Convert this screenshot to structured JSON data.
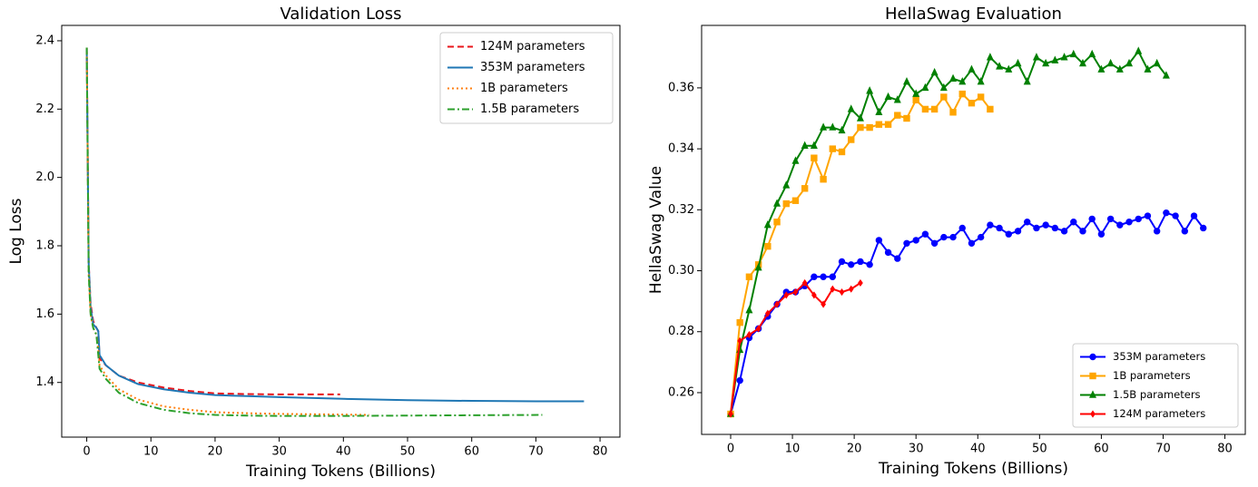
{
  "chart_data": [
    {
      "type": "line",
      "title": "Validation Loss",
      "xlabel": "Training Tokens (Billions)",
      "ylabel": "Log Loss",
      "xlim": [
        -3.9,
        83.1
      ],
      "xticks": [
        0,
        10,
        20,
        30,
        40,
        50,
        60,
        70,
        80
      ],
      "ylim": [
        1.24,
        2.445
      ],
      "yticks": [
        {
          "value": 1.4,
          "label": "1.4"
        },
        1.6,
        1.8,
        {
          "value": 2,
          "label": "2.0"
        },
        2.2,
        2.4
      ],
      "legend": "upper right",
      "series": [
        {
          "name": "124M parameters",
          "color": "#e8161b",
          "linestyle": "dashed",
          "x": [
            0,
            0.3,
            0.6,
            1,
            1.5,
            1.8,
            2,
            3,
            5,
            8,
            12,
            16,
            20,
            25,
            30,
            35,
            39.5
          ],
          "values": [
            2.38,
            1.75,
            1.63,
            1.58,
            1.56,
            1.55,
            1.47,
            1.45,
            1.42,
            1.4,
            1.385,
            1.375,
            1.368,
            1.366,
            1.365,
            1.365,
            1.365
          ]
        },
        {
          "name": "353M parameters",
          "color": "#1f77b4",
          "linestyle": "solid",
          "x": [
            0,
            0.3,
            0.6,
            1,
            1.5,
            1.8,
            2,
            3,
            5,
            8,
            12,
            16,
            20,
            25,
            30,
            40,
            50,
            60,
            70,
            77.5
          ],
          "values": [
            2.38,
            1.75,
            1.62,
            1.57,
            1.56,
            1.55,
            1.48,
            1.45,
            1.42,
            1.395,
            1.38,
            1.37,
            1.363,
            1.36,
            1.357,
            1.352,
            1.348,
            1.346,
            1.345,
            1.345
          ]
        },
        {
          "name": "1B parameters",
          "color": "#ff7f0e",
          "linestyle": "dotted",
          "x": [
            0,
            0.3,
            0.6,
            1,
            1.5,
            1.8,
            2,
            3,
            5,
            8,
            12,
            16,
            20,
            25,
            30,
            35,
            40,
            44
          ],
          "values": [
            2.38,
            1.72,
            1.6,
            1.56,
            1.54,
            1.5,
            1.45,
            1.42,
            1.38,
            1.35,
            1.33,
            1.32,
            1.313,
            1.31,
            1.308,
            1.307,
            1.306,
            1.305
          ]
        },
        {
          "name": "1.5B parameters",
          "color": "#2ca02c",
          "linestyle": "dashdot",
          "x": [
            0,
            0.3,
            0.6,
            1,
            1.5,
            2,
            3,
            5,
            8,
            12,
            16,
            20,
            25,
            30,
            40,
            50,
            60,
            71
          ],
          "values": [
            2.38,
            1.72,
            1.6,
            1.56,
            1.54,
            1.44,
            1.41,
            1.37,
            1.34,
            1.32,
            1.31,
            1.305,
            1.303,
            1.302,
            1.302,
            1.303,
            1.304,
            1.305
          ]
        }
      ]
    },
    {
      "type": "line",
      "title": "HellaSwag Evaluation",
      "xlabel": "Training Tokens (Billions)",
      "ylabel": "HellaSwag Value",
      "xlim": [
        -4.7,
        83.3
      ],
      "xticks": [
        0,
        10,
        20,
        30,
        40,
        50,
        60,
        70,
        80
      ],
      "ylim": [
        0.2463,
        0.3805
      ],
      "yticks": [
        0.26,
        0.28,
        {
          "value": 0.3,
          "label": "0.30"
        },
        0.32,
        0.34,
        0.36
      ],
      "legend": "lower right",
      "series": [
        {
          "name": "353M parameters",
          "color": "#0000ff",
          "linestyle": "solid",
          "marker": "circle",
          "x": [
            0,
            1.5,
            3,
            4.5,
            6,
            7.5,
            9,
            10.5,
            12,
            13.5,
            15,
            16.5,
            18,
            19.5,
            21,
            22.5,
            24,
            25.5,
            27,
            28.5,
            30,
            31.5,
            33,
            34.5,
            36,
            37.5,
            39,
            40.5,
            42,
            43.5,
            45,
            46.5,
            48,
            49.5,
            51,
            52.5,
            54,
            55.5,
            57,
            58.5,
            60,
            61.5,
            63,
            64.5,
            66,
            67.5,
            69,
            70.5,
            72,
            73.5,
            75,
            76.5
          ],
          "values": [
            0.253,
            0.264,
            0.278,
            0.281,
            0.285,
            0.289,
            0.293,
            0.293,
            0.295,
            0.298,
            0.298,
            0.298,
            0.303,
            0.302,
            0.303,
            0.302,
            0.31,
            0.306,
            0.304,
            0.309,
            0.31,
            0.312,
            0.309,
            0.311,
            0.311,
            0.314,
            0.309,
            0.311,
            0.315,
            0.314,
            0.312,
            0.313,
            0.316,
            0.314,
            0.315,
            0.314,
            0.313,
            0.316,
            0.313,
            0.317,
            0.312,
            0.317,
            0.315,
            0.316,
            0.317,
            0.318,
            0.313,
            0.319,
            0.318,
            0.313,
            0.318,
            0.314
          ]
        },
        {
          "name": "1B parameters",
          "color": "#ffa500",
          "linestyle": "solid",
          "marker": "square",
          "x": [
            0,
            1.5,
            3,
            4.5,
            6,
            7.5,
            9,
            10.5,
            12,
            13.5,
            15,
            16.5,
            18,
            19.5,
            21,
            22.5,
            24,
            25.5,
            27,
            28.5,
            30,
            31.5,
            33,
            34.5,
            36,
            37.5,
            39,
            40.5,
            42
          ],
          "values": [
            0.253,
            0.283,
            0.298,
            0.302,
            0.308,
            0.316,
            0.322,
            0.323,
            0.327,
            0.337,
            0.33,
            0.34,
            0.339,
            0.343,
            0.347,
            0.347,
            0.348,
            0.348,
            0.351,
            0.35,
            0.356,
            0.353,
            0.353,
            0.357,
            0.352,
            0.358,
            0.355,
            0.357,
            0.353
          ]
        },
        {
          "name": "1.5B parameters",
          "color": "#008000",
          "linestyle": "solid",
          "marker": "triangle",
          "x": [
            0,
            1.5,
            3,
            4.5,
            6,
            7.5,
            9,
            10.5,
            12,
            13.5,
            15,
            16.5,
            18,
            19.5,
            21,
            22.5,
            24,
            25.5,
            27,
            28.5,
            30,
            31.5,
            33,
            34.5,
            36,
            37.5,
            39,
            40.5,
            42,
            43.5,
            45,
            46.5,
            48,
            49.5,
            51,
            52.5,
            54,
            55.5,
            57,
            58.5,
            60,
            61.5,
            63,
            64.5,
            66,
            67.5,
            69,
            70.5
          ],
          "values": [
            0.253,
            0.274,
            0.287,
            0.301,
            0.315,
            0.322,
            0.328,
            0.336,
            0.341,
            0.341,
            0.347,
            0.347,
            0.346,
            0.353,
            0.35,
            0.359,
            0.352,
            0.357,
            0.356,
            0.362,
            0.358,
            0.36,
            0.365,
            0.36,
            0.363,
            0.362,
            0.366,
            0.362,
            0.37,
            0.367,
            0.366,
            0.368,
            0.362,
            0.37,
            0.368,
            0.369,
            0.37,
            0.371,
            0.368,
            0.371,
            0.366,
            0.368,
            0.366,
            0.368,
            0.372,
            0.366,
            0.368,
            0.364
          ]
        },
        {
          "name": "124M parameters",
          "color": "#ff0000",
          "linestyle": "solid",
          "marker": "diamond",
          "x": [
            0,
            1.5,
            3,
            4.5,
            6,
            7.5,
            9,
            10.5,
            12,
            13.5,
            15,
            16.5,
            18,
            19.5,
            21
          ],
          "values": [
            0.253,
            0.277,
            0.279,
            0.281,
            0.286,
            0.289,
            0.292,
            0.293,
            0.296,
            0.292,
            0.289,
            0.294,
            0.293,
            0.294,
            0.296
          ]
        }
      ]
    }
  ]
}
